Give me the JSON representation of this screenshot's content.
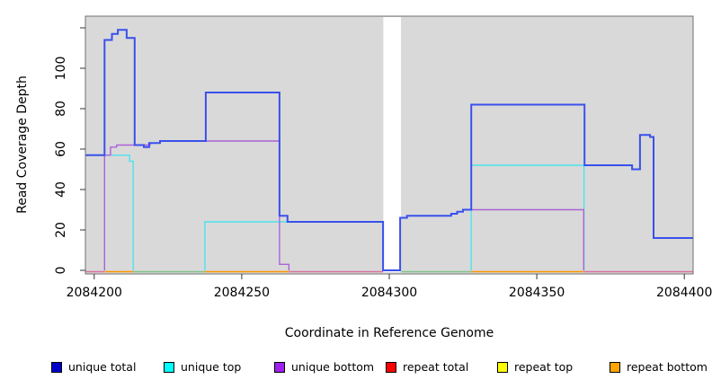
{
  "chart_data": {
    "type": "line",
    "title": "",
    "xlabel": "Coordinate in Reference Genome",
    "ylabel": "Read Coverage Depth",
    "xlim": [
      2084197,
      2084403
    ],
    "ylim": [
      0,
      122
    ],
    "grid": false,
    "legend_position": "bottom",
    "x_ticks": [
      2084200,
      2084250,
      2084300,
      2084350,
      2084400
    ],
    "y_ticks": [
      0,
      20,
      40,
      60,
      80,
      100
    ],
    "y_tick_unlabeled": 120,
    "gap_region": {
      "x_start": 2084298,
      "x_end": 2084304,
      "note": "white masked vertical band, coverage drops to 0"
    },
    "series": [
      {
        "name": "unique total",
        "line_color": "#3A50EC",
        "legend_color": "#0000CC",
        "skip_zero": false,
        "steps": [
          [
            2084197.0,
            2084203.5,
            57
          ],
          [
            2084203.5,
            2084206.0,
            114
          ],
          [
            2084206.0,
            2084208.0,
            117
          ],
          [
            2084208.0,
            2084211.0,
            119
          ],
          [
            2084211.0,
            2084213.7,
            115
          ],
          [
            2084213.7,
            2084216.8,
            62
          ],
          [
            2084216.8,
            2084218.6,
            61
          ],
          [
            2084218.6,
            2084222.3,
            63
          ],
          [
            2084222.3,
            2084237.8,
            64
          ],
          [
            2084237.8,
            2084262.8,
            88
          ],
          [
            2084262.8,
            2084265.5,
            27
          ],
          [
            2084265.5,
            2084297.9,
            24
          ],
          [
            2084297.9,
            2084303.7,
            0
          ],
          [
            2084303.7,
            2084306.0,
            26
          ],
          [
            2084306.0,
            2084321.0,
            27
          ],
          [
            2084321.0,
            2084323.0,
            28
          ],
          [
            2084323.0,
            2084325.0,
            29
          ],
          [
            2084325.0,
            2084327.8,
            30
          ],
          [
            2084327.8,
            2084366.2,
            82
          ],
          [
            2084366.2,
            2084382.3,
            52
          ],
          [
            2084382.3,
            2084385.0,
            50
          ],
          [
            2084385.0,
            2084388.4,
            67
          ],
          [
            2084388.4,
            2084389.6,
            66
          ],
          [
            2084389.6,
            2084403.0,
            16
          ]
        ]
      },
      {
        "name": "unique top",
        "line_color": "#4DE3EC",
        "legend_color": "#00FFFF",
        "skip_zero": true,
        "steps": [
          [
            2084197.0,
            2084212.0,
            57
          ],
          [
            2084212.0,
            2084213.2,
            54
          ],
          [
            2084213.2,
            2084237.5,
            0
          ],
          [
            2084237.5,
            2084297.9,
            24
          ],
          [
            2084297.9,
            2084327.8,
            0
          ],
          [
            2084327.8,
            2084366.0,
            52
          ],
          [
            2084366.0,
            2084403.0,
            0
          ]
        ]
      },
      {
        "name": "unique bottom",
        "line_color": "#AB62D8",
        "legend_color": "#A020F0",
        "skip_zero": true,
        "steps": [
          [
            2084197.0,
            2084203.5,
            0
          ],
          [
            2084203.5,
            2084205.5,
            57
          ],
          [
            2084205.5,
            2084207.6,
            61
          ],
          [
            2084207.6,
            2084218.9,
            62
          ],
          [
            2084218.9,
            2084222.3,
            63
          ],
          [
            2084222.3,
            2084262.8,
            64
          ],
          [
            2084262.8,
            2084266.0,
            3
          ],
          [
            2084266.0,
            2084303.7,
            0
          ],
          [
            2084303.7,
            2084306.0,
            26
          ],
          [
            2084306.0,
            2084321.0,
            27
          ],
          [
            2084321.0,
            2084323.0,
            28
          ],
          [
            2084323.0,
            2084325.0,
            29
          ],
          [
            2084325.0,
            2084365.9,
            30
          ],
          [
            2084365.9,
            2084403.0,
            0
          ]
        ]
      },
      {
        "name": "repeat total",
        "line_color": "#FF0000",
        "legend_color": "#FF0000",
        "skip_zero": true,
        "drawn_via_baseline": true,
        "steps": [
          [
            2084197.0,
            2084403.0,
            0
          ]
        ]
      },
      {
        "name": "repeat top",
        "line_color": "#FFFF00",
        "legend_color": "#FFFF00",
        "skip_zero": true,
        "drawn_via_baseline": true,
        "steps": [
          [
            2084197.0,
            2084403.0,
            0
          ]
        ]
      },
      {
        "name": "repeat bottom",
        "line_color": "#FFA500",
        "legend_color": "#FFA500",
        "skip_zero": true,
        "drawn_via_baseline": true,
        "steps": [
          [
            2084197.0,
            2084403.0,
            0
          ]
        ]
      }
    ],
    "baseline_segments": [
      {
        "x1": 2084197.0,
        "x2": 2084203.5,
        "color": "#D9709E"
      },
      {
        "x1": 2084203.5,
        "x2": 2084213.2,
        "color": "#FF9400"
      },
      {
        "x1": 2084213.2,
        "x2": 2084237.5,
        "color": "#7FC48C"
      },
      {
        "x1": 2084237.5,
        "x2": 2084266.0,
        "color": "#FF9400"
      },
      {
        "x1": 2084266.0,
        "x2": 2084297.9,
        "color": "#D9709E"
      },
      {
        "x1": 2084303.7,
        "x2": 2084327.8,
        "color": "#7FC48C"
      },
      {
        "x1": 2084327.8,
        "x2": 2084365.9,
        "color": "#FF9400"
      },
      {
        "x1": 2084365.9,
        "x2": 2084403.0,
        "color": "#D9709E"
      }
    ]
  },
  "axes": {
    "x_label": "Coordinate in Reference Genome",
    "y_label": "Read Coverage Depth"
  },
  "legend": {
    "items": [
      {
        "label": "unique total",
        "color": "#0000CC"
      },
      {
        "label": "unique top",
        "color": "#00FFFF"
      },
      {
        "label": "unique bottom",
        "color": "#A020F0"
      },
      {
        "label": "repeat total",
        "color": "#FF0000"
      },
      {
        "label": "repeat top",
        "color": "#FFFF00"
      },
      {
        "label": "repeat bottom",
        "color": "#FFA500"
      }
    ]
  },
  "colors": {
    "panel_background": "#D9D9D9",
    "outer_background": "#FFFFFF",
    "box_border": "#707070",
    "gap_fill": "#FFFFFF"
  }
}
